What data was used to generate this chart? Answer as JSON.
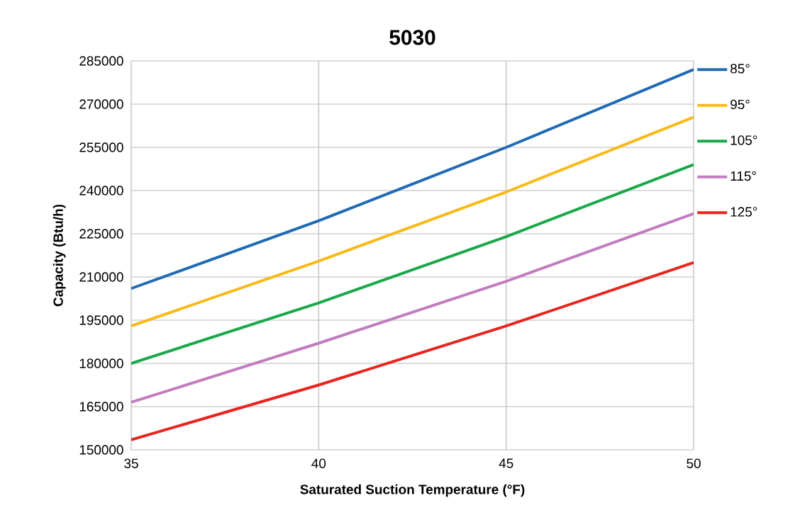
{
  "chart_data": {
    "type": "line",
    "title": "5030",
    "xlabel": "Saturated Suction Temperature (°F)",
    "ylabel": "Capacity (Btu/h)",
    "x": [
      35,
      40,
      45,
      50
    ],
    "series": [
      {
        "name": "85°",
        "color": "#1f6ab5",
        "values": [
          206000,
          229500,
          255000,
          282000
        ]
      },
      {
        "name": "95°",
        "color": "#fbb917",
        "values": [
          193000,
          215500,
          239500,
          265500
        ]
      },
      {
        "name": "105°",
        "color": "#1aa84a",
        "values": [
          180000,
          201000,
          224000,
          249000
        ]
      },
      {
        "name": "115°",
        "color": "#c27cc0",
        "values": [
          166500,
          187000,
          208500,
          232000
        ]
      },
      {
        "name": "125°",
        "color": "#e8251f",
        "values": [
          153500,
          172500,
          193000,
          215000
        ]
      }
    ],
    "xlim": [
      35,
      50
    ],
    "ylim": [
      150000,
      285000
    ],
    "xticks": [
      35,
      40,
      45,
      50
    ],
    "yticks": [
      150000,
      165000,
      180000,
      195000,
      210000,
      225000,
      240000,
      255000,
      270000,
      285000
    ],
    "grid": true,
    "legend": "right",
    "marker": "none",
    "line_style": "solid"
  }
}
